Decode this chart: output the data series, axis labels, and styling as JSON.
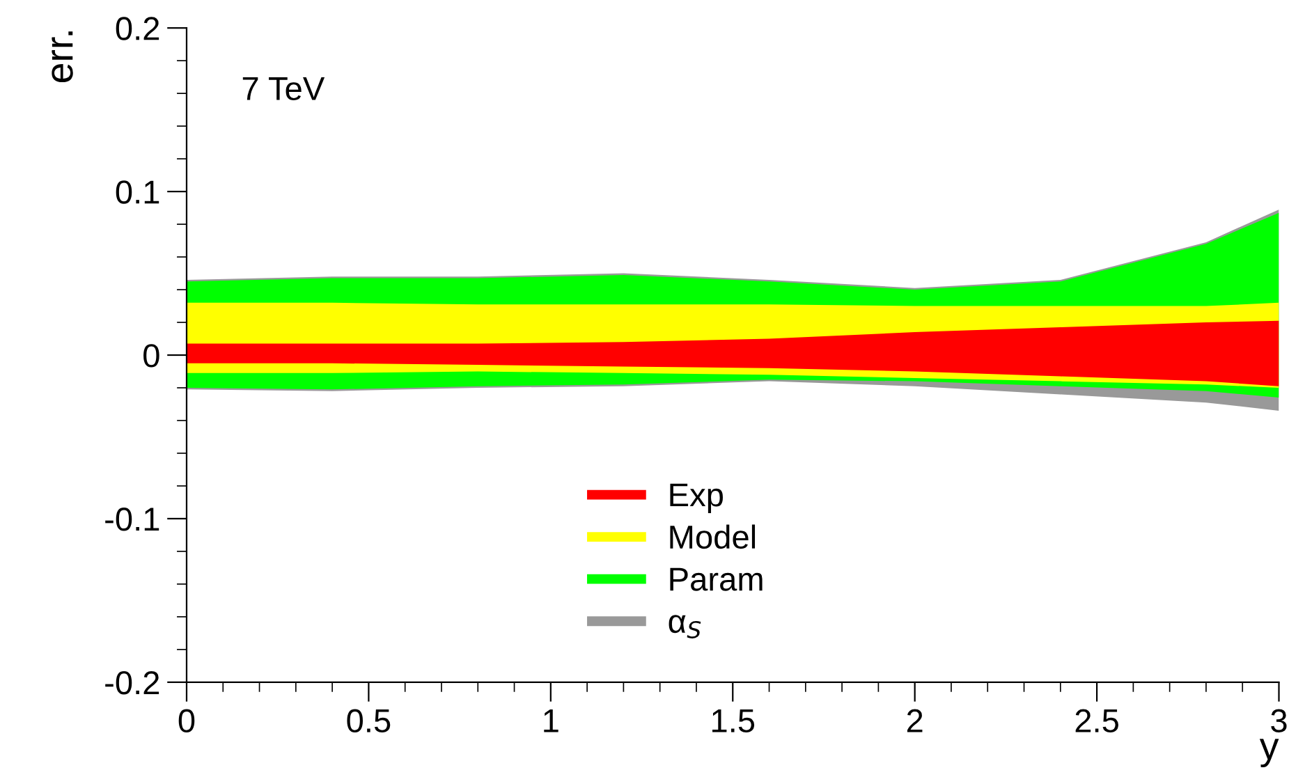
{
  "chart_data": {
    "type": "area",
    "ylabel": "err.",
    "xlabel": "y",
    "annotations": [
      "7 TeV"
    ],
    "x": [
      0,
      0.4,
      0.8,
      1.2,
      1.6,
      2.0,
      2.4,
      2.8,
      3.0
    ],
    "xlim": [
      0,
      3
    ],
    "xticks": [
      0,
      0.5,
      1,
      1.5,
      2,
      2.5,
      3
    ],
    "ylim": [
      -0.2,
      0.2
    ],
    "yticks": [
      -0.2,
      -0.1,
      0,
      0.1,
      0.2
    ],
    "grid": false,
    "legend": "bottom",
    "series": [
      {
        "name": "α$_{S}$",
        "color": "#999999",
        "values": [
          null,
          null,
          null,
          null,
          null,
          null,
          null,
          null,
          null
        ],
        "upper": [
          0.046,
          0.048,
          0.048,
          0.05,
          0.046,
          0.041,
          0.046,
          0.069,
          0.089
        ],
        "lower": [
          -0.021,
          -0.022,
          -0.02,
          -0.019,
          -0.016,
          -0.019,
          -0.024,
          -0.029,
          -0.034
        ]
      },
      {
        "name": "Param",
        "color": "#00ff00",
        "values": [
          null,
          null,
          null,
          null,
          null,
          null,
          null,
          null,
          null
        ],
        "upper": [
          0.045,
          0.047,
          0.047,
          0.049,
          0.045,
          0.04,
          0.045,
          0.068,
          0.087
        ],
        "lower": [
          -0.02,
          -0.021,
          -0.019,
          -0.018,
          -0.015,
          -0.016,
          -0.019,
          -0.022,
          -0.026
        ]
      },
      {
        "name": "Model",
        "color": "#ffff00",
        "values": [
          null,
          null,
          null,
          null,
          null,
          null,
          null,
          null,
          null
        ],
        "upper": [
          0.032,
          0.032,
          0.031,
          0.031,
          0.031,
          0.03,
          0.03,
          0.03,
          0.032
        ],
        "lower": [
          -0.011,
          -0.011,
          -0.01,
          -0.011,
          -0.012,
          -0.014,
          -0.016,
          -0.018,
          -0.02
        ]
      },
      {
        "name": "Exp",
        "color": "#ff0000",
        "values": [
          null,
          null,
          null,
          null,
          null,
          null,
          null,
          null,
          null
        ],
        "upper": [
          0.007,
          0.007,
          0.007,
          0.008,
          0.01,
          0.014,
          0.017,
          0.02,
          0.021
        ],
        "lower": [
          -0.005,
          -0.005,
          -0.006,
          -0.007,
          -0.008,
          -0.01,
          -0.013,
          -0.016,
          -0.019
        ]
      }
    ]
  }
}
